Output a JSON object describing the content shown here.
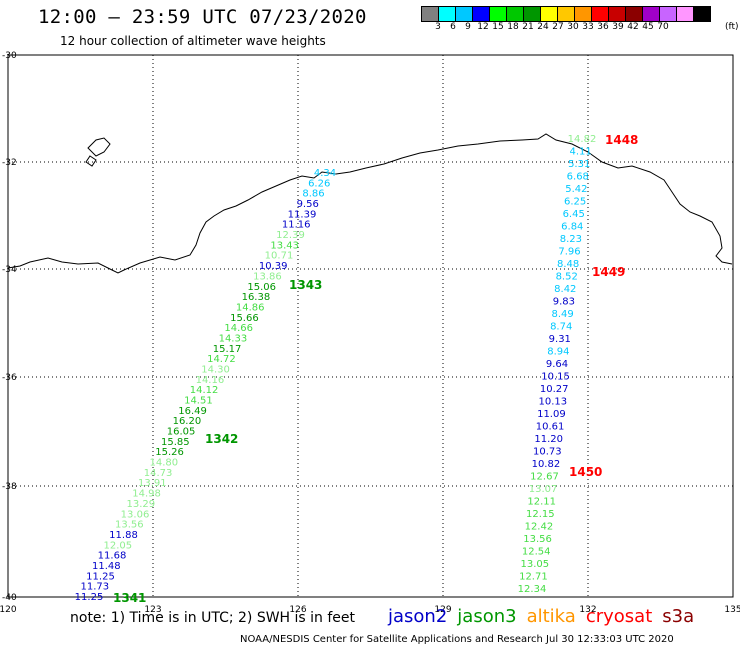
{
  "title": "12:00 — 23:59 UTC 07/23/2020",
  "subtitle": "12 hour collection of altimeter wave heights",
  "colorbar": {
    "colors": [
      "#808080",
      "#00ffff",
      "#00c8ff",
      "#0000ff",
      "#00ff00",
      "#00c800",
      "#009600",
      "#ffff00",
      "#ffc800",
      "#ff9600",
      "#ff0000",
      "#c80000",
      "#8b0000",
      "#a000c8",
      "#c864ff",
      "#ff96ff",
      "#000000"
    ],
    "labels": [
      "3",
      "6",
      "9",
      "12",
      "15",
      "18",
      "21",
      "24",
      "27",
      "30",
      "33",
      "36",
      "39",
      "42",
      "45",
      "70"
    ],
    "unit": "(ft)"
  },
  "axes": {
    "lon_ticks": [
      "120",
      "123",
      "126",
      "129",
      "132",
      "135"
    ],
    "lat_ticks": [
      "-30",
      "-32",
      "-34",
      "-36",
      "-38",
      "-40"
    ]
  },
  "pass_labels": [
    {
      "text": "1448",
      "color": "#ff0000"
    },
    {
      "text": "1449",
      "color": "#ff0000"
    },
    {
      "text": "1450",
      "color": "#ff0000"
    },
    {
      "text": "1343",
      "color": "#009600"
    },
    {
      "text": "1342",
      "color": "#009600"
    },
    {
      "text": "1341",
      "color": "#009600"
    }
  ],
  "tracks": [
    {
      "name": "track_east",
      "values": [
        "14.82",
        "4.11",
        "5.31",
        "6.68",
        "5.42",
        "6.25",
        "6.45",
        "6.84",
        "8.23",
        "7.96",
        "8.48",
        "8.52",
        "8.42",
        "9.83",
        "8.49",
        "8.74",
        "9.31",
        "8.94",
        "9.64",
        "10.15",
        "10.27",
        "10.13",
        "11.09",
        "10.61",
        "11.20",
        "10.73",
        "10.82",
        "12.67",
        "13.07",
        "12.11",
        "12.15",
        "12.42",
        "13.56",
        "12.54",
        "13.05",
        "12.71",
        "12.34"
      ],
      "colors": [
        "#90ee90",
        "#00c8ff",
        "#00c8ff",
        "#00c8ff",
        "#00c8ff",
        "#00c8ff",
        "#00c8ff",
        "#00c8ff",
        "#00c8ff",
        "#00c8ff",
        "#00c8ff",
        "#00c8ff",
        "#00c8ff",
        "#0000c8",
        "#00c8ff",
        "#00c8ff",
        "#0000c8",
        "#00c8ff",
        "#0000c8",
        "#0000c8",
        "#0000c8",
        "#0000c8",
        "#0000c8",
        "#0000c8",
        "#0000c8",
        "#0000c8",
        "#0000c8",
        "#44dd44",
        "#90ee90",
        "#44dd44",
        "#44dd44",
        "#44dd44",
        "#44dd44",
        "#44dd44",
        "#44dd44",
        "#44dd44",
        "#44dd44"
      ]
    },
    {
      "name": "track_west",
      "values": [
        "4.34",
        "6.26",
        "8.86",
        "9.56",
        "11.39",
        "11.16",
        "12.39",
        "13.43",
        "10.71",
        "10.39",
        "13.86",
        "15.06",
        "16.38",
        "14.86",
        "15.66",
        "14.66",
        "14.33",
        "15.17",
        "14.72",
        "14.30",
        "14.16",
        "14.12",
        "14.51",
        "16.49",
        "16.20",
        "16.05",
        "15.85",
        "15.26",
        "14.80",
        "14.73",
        "13.91",
        "14.98",
        "13.29",
        "13.06",
        "13.56",
        "11.88",
        "12.05",
        "11.68",
        "11.48",
        "11.25",
        "11.73",
        "11.25"
      ],
      "colors": [
        "#00c8ff",
        "#00c8ff",
        "#00c8ff",
        "#0000c8",
        "#0000c8",
        "#0000c8",
        "#90ee90",
        "#44dd44",
        "#90ee90",
        "#0000c8",
        "#90ee90",
        "#009600",
        "#009600",
        "#44dd44",
        "#009600",
        "#44dd44",
        "#44dd44",
        "#009600",
        "#44dd44",
        "#90ee90",
        "#90ee90",
        "#44dd44",
        "#44dd44",
        "#009600",
        "#009600",
        "#009600",
        "#009600",
        "#009600",
        "#90ee90",
        "#90ee90",
        "#90ee90",
        "#90ee90",
        "#90ee90",
        "#90ee90",
        "#90ee90",
        "#0000c8",
        "#90ee90",
        "#0000c8",
        "#0000c8",
        "#0000c8",
        "#0000c8",
        "#0000c8"
      ]
    }
  ],
  "note": "note: 1) Time is in UTC; 2) SWH is in feet",
  "satellites": [
    {
      "name": "jason2",
      "color": "#0000c8"
    },
    {
      "name": "jason3",
      "color": "#009600"
    },
    {
      "name": "altika",
      "color": "#ff9600"
    },
    {
      "name": "cryosat",
      "color": "#ff0000"
    },
    {
      "name": "s3a",
      "color": "#8b0000"
    }
  ],
  "footer": "NOAA/NESDIS Center for Satellite Applications and Research   Jul 30 12:33:03 UTC 2020"
}
